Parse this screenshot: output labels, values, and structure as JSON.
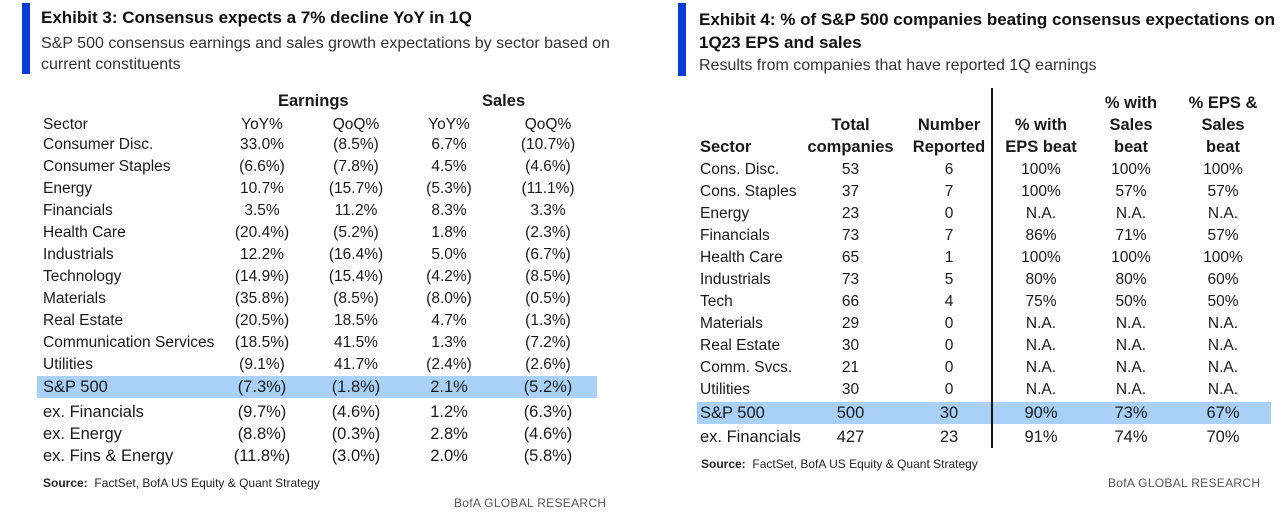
{
  "exhibit3": {
    "title": "Exhibit 3: Consensus expects a 7% decline YoY in 1Q",
    "subtitle": "S&P 500 consensus earnings and sales growth expectations by sector based on current constituents",
    "group_headers": [
      "Earnings",
      "Sales"
    ],
    "columns": [
      "Sector",
      "YoY%",
      "QoQ%",
      "YoY%",
      "QoQ%"
    ],
    "rows": [
      [
        "Consumer Disc.",
        "33.0%",
        "(8.5%)",
        "6.7%",
        "(10.7%)"
      ],
      [
        "Consumer Staples",
        "(6.6%)",
        "(7.8%)",
        "4.5%",
        "(4.6%)"
      ],
      [
        "Energy",
        "10.7%",
        "(15.7%)",
        "(5.3%)",
        "(11.1%)"
      ],
      [
        "Financials",
        "3.5%",
        "11.2%",
        "8.3%",
        "3.3%"
      ],
      [
        "Health Care",
        "(20.4%)",
        "(5.2%)",
        "1.8%",
        "(2.3%)"
      ],
      [
        "Industrials",
        "12.2%",
        "(16.4%)",
        "5.0%",
        "(6.7%)"
      ],
      [
        "Technology",
        "(14.9%)",
        "(15.4%)",
        "(4.2%)",
        "(8.5%)"
      ],
      [
        "Materials",
        "(35.8%)",
        "(8.5%)",
        "(8.0%)",
        "(0.5%)"
      ],
      [
        "Real Estate",
        "(20.5%)",
        "18.5%",
        "4.7%",
        "(1.3%)"
      ],
      [
        "Communication Services",
        "(18.5%)",
        "41.5%",
        "1.3%",
        "(7.2%)"
      ],
      [
        "Utilities",
        "(9.1%)",
        "41.7%",
        "(2.4%)",
        "(2.6%)"
      ]
    ],
    "total_rows": [
      [
        "S&P 500",
        "(7.3%)",
        "(1.8%)",
        "2.1%",
        "(5.2%)"
      ],
      [
        "ex. Financials",
        "(9.7%)",
        "(4.6%)",
        "1.2%",
        "(6.3%)"
      ],
      [
        "ex. Energy",
        "(8.8%)",
        "(0.3%)",
        "2.8%",
        "(4.6%)"
      ],
      [
        "ex. Fins & Energy",
        "(11.8%)",
        "(3.0%)",
        "2.0%",
        "(5.8%)"
      ]
    ],
    "source_label": "Source:",
    "source_text": "FactSet, BofA US Equity & Quant Strategy",
    "brand": "BofA GLOBAL RESEARCH"
  },
  "exhibit4": {
    "title": "Exhibit 4: % of S&P 500 companies beating consensus expectations on 1Q23 EPS and sales",
    "subtitle": "Results from companies that have reported 1Q earnings",
    "columns": [
      [
        "Sector"
      ],
      [
        "Total",
        "companies"
      ],
      [
        "Number",
        "Reported"
      ],
      [
        "% with",
        "EPS beat"
      ],
      [
        "% with",
        "Sales",
        "beat"
      ],
      [
        "% EPS &",
        "Sales",
        "beat"
      ]
    ],
    "rows": [
      [
        "Cons. Disc.",
        "53",
        "6",
        "100%",
        "100%",
        "100%"
      ],
      [
        "Cons. Staples",
        "37",
        "7",
        "100%",
        "57%",
        "57%"
      ],
      [
        "Energy",
        "23",
        "0",
        "N.A.",
        "N.A.",
        "N.A."
      ],
      [
        "Financials",
        "73",
        "7",
        "86%",
        "71%",
        "57%"
      ],
      [
        "Health Care",
        "65",
        "1",
        "100%",
        "100%",
        "100%"
      ],
      [
        "Industrials",
        "73",
        "5",
        "80%",
        "80%",
        "60%"
      ],
      [
        "Tech",
        "66",
        "4",
        "75%",
        "50%",
        "50%"
      ],
      [
        "Materials",
        "29",
        "0",
        "N.A.",
        "N.A.",
        "N.A."
      ],
      [
        "Real Estate",
        "30",
        "0",
        "N.A.",
        "N.A.",
        "N.A."
      ],
      [
        "Comm. Svcs.",
        "21",
        "0",
        "N.A.",
        "N.A.",
        "N.A."
      ],
      [
        "Utilities",
        "30",
        "0",
        "N.A.",
        "N.A.",
        "N.A."
      ]
    ],
    "total_rows": [
      [
        "S&P 500",
        "500",
        "30",
        "90%",
        "73%",
        "67%"
      ],
      [
        "ex. Financials",
        "427",
        "23",
        "91%",
        "74%",
        "70%"
      ]
    ],
    "source_label": "Source:",
    "source_text": "FactSet, BofA US Equity & Quant Strategy",
    "brand": "BofA GLOBAL RESEARCH"
  }
}
